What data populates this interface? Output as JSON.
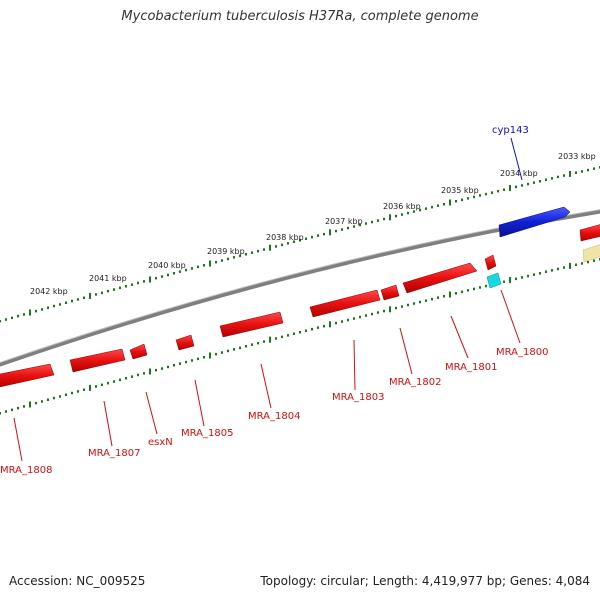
{
  "title": "Mycobacterium tuberculosis H37Ra, complete genome",
  "footer": {
    "accession": "Accession: NC_009525",
    "summary": "Topology: circular; Length: 4,419,977 bp; Genes: 4,084"
  },
  "colors": {
    "backbone": "#7f7f7f",
    "tick": "#1a7a1a",
    "gene_red": "#e81010",
    "gene_blue": "#1020d8",
    "gene_cyan": "#19d8e0",
    "gene_yellow": "#efe3a8",
    "label_red": "#d01010",
    "label_blue": "#1010c0"
  },
  "scale_labels": [
    "2033 kbp",
    "2034 kbp",
    "2035 kbp",
    "2036 kbp",
    "2037 kbp",
    "2038 kbp",
    "2039 kbp",
    "2040 kbp",
    "2041 kbp",
    "2042 kbp"
  ],
  "gene_labels": [
    {
      "text": "cyp143",
      "color": "blue"
    },
    {
      "text": "MRA_1800",
      "color": "red"
    },
    {
      "text": "MRA_1801",
      "color": "red"
    },
    {
      "text": "MRA_1802",
      "color": "red"
    },
    {
      "text": "MRA_1803",
      "color": "red"
    },
    {
      "text": "MRA_1804",
      "color": "red"
    },
    {
      "text": "MRA_1805",
      "color": "red"
    },
    {
      "text": "esxN",
      "color": "red"
    },
    {
      "text": "MRA_1807",
      "color": "red"
    },
    {
      "text": "MRA_1808",
      "color": "red"
    }
  ]
}
